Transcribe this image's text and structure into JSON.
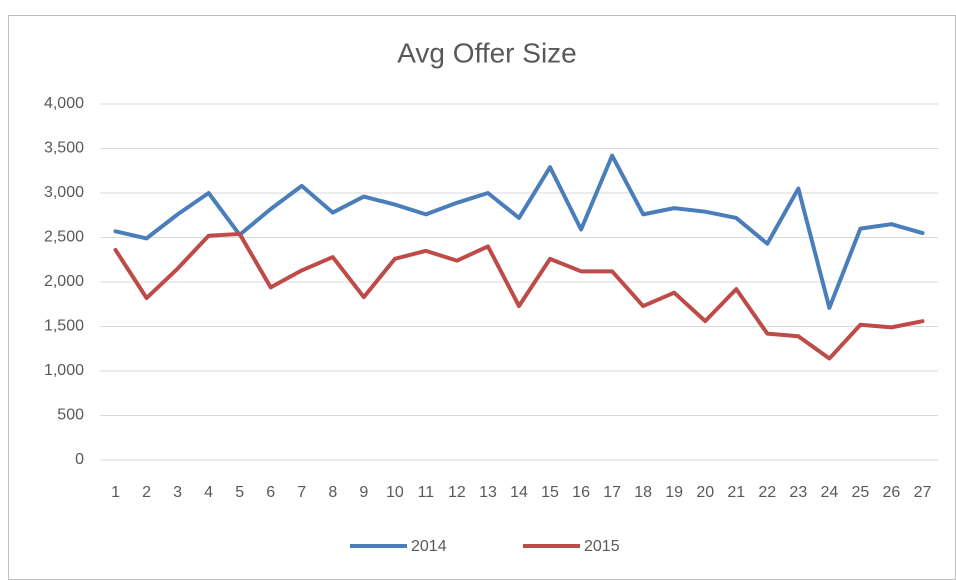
{
  "chart_data": {
    "type": "line",
    "title": "Avg Offer Size",
    "categories": [
      "1",
      "2",
      "3",
      "4",
      "5",
      "6",
      "7",
      "8",
      "9",
      "10",
      "11",
      "12",
      "13",
      "14",
      "15",
      "16",
      "17",
      "18",
      "19",
      "20",
      "21",
      "22",
      "23",
      "24",
      "25",
      "26",
      "27"
    ],
    "series": [
      {
        "name": "2014",
        "color": "#4a7ebb",
        "values": [
          2570,
          2490,
          2760,
          3000,
          2530,
          2820,
          3080,
          2780,
          2960,
          2870,
          2760,
          2890,
          3000,
          2720,
          3290,
          2590,
          3420,
          2760,
          2830,
          2790,
          2720,
          2430,
          3050,
          1710,
          2600,
          2650,
          2550
        ]
      },
      {
        "name": "2015",
        "color": "#be4b48",
        "values": [
          2360,
          1820,
          2150,
          2520,
          2540,
          1940,
          2130,
          2280,
          1830,
          2260,
          2350,
          2240,
          2400,
          1730,
          2260,
          2120,
          2120,
          1730,
          1880,
          1560,
          1920,
          1420,
          1390,
          1140,
          1520,
          1490,
          1560
        ]
      }
    ],
    "ylim": [
      0,
      4000
    ],
    "yticks": [
      0,
      500,
      {
        "value": 1000,
        "label": "1,000"
      },
      {
        "value": 1500,
        "label": "1,500"
      },
      {
        "value": 2000,
        "label": "2,000"
      },
      {
        "value": 2500,
        "label": "2,500"
      },
      {
        "value": 3000,
        "label": "3,000"
      },
      {
        "value": 3500,
        "label": "3,500"
      },
      {
        "value": 4000,
        "label": "4,000"
      }
    ],
    "grid": true,
    "legend": "bottom"
  }
}
